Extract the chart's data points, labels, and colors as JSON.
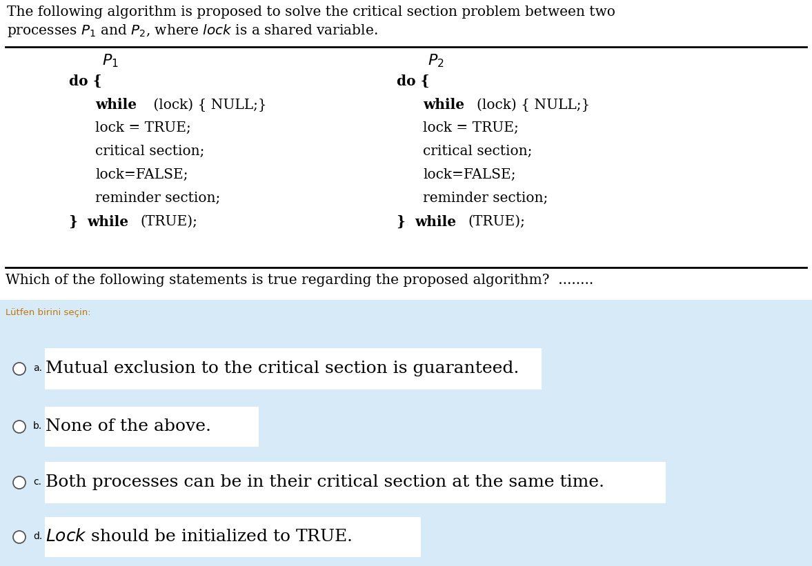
{
  "bg_color": "#ffffff",
  "answer_bg_color": "#d6eaf8",
  "answer_highlight_color": "#e8f4fb",
  "top_text_line1": "The following algorithm is proposed to solve the critical section problem between two",
  "top_text_line2_plain": "processes ",
  "top_text_line2_p1": "P",
  "top_text_line2_mid": " and ",
  "top_text_line2_p2": "P",
  "top_text_line2_end": ", where ",
  "top_text_line2_lock": "lock",
  "top_text_line2_tail": " is a shared variable.",
  "lutfen_text": "Lütfen birini seçin:",
  "title_fontsize": 14.5,
  "code_fontsize": 14.5,
  "question_fontsize": 14.5,
  "option_fontsize": 18,
  "option_letter_fontsize": 10,
  "lutfen_fontsize": 9.5
}
